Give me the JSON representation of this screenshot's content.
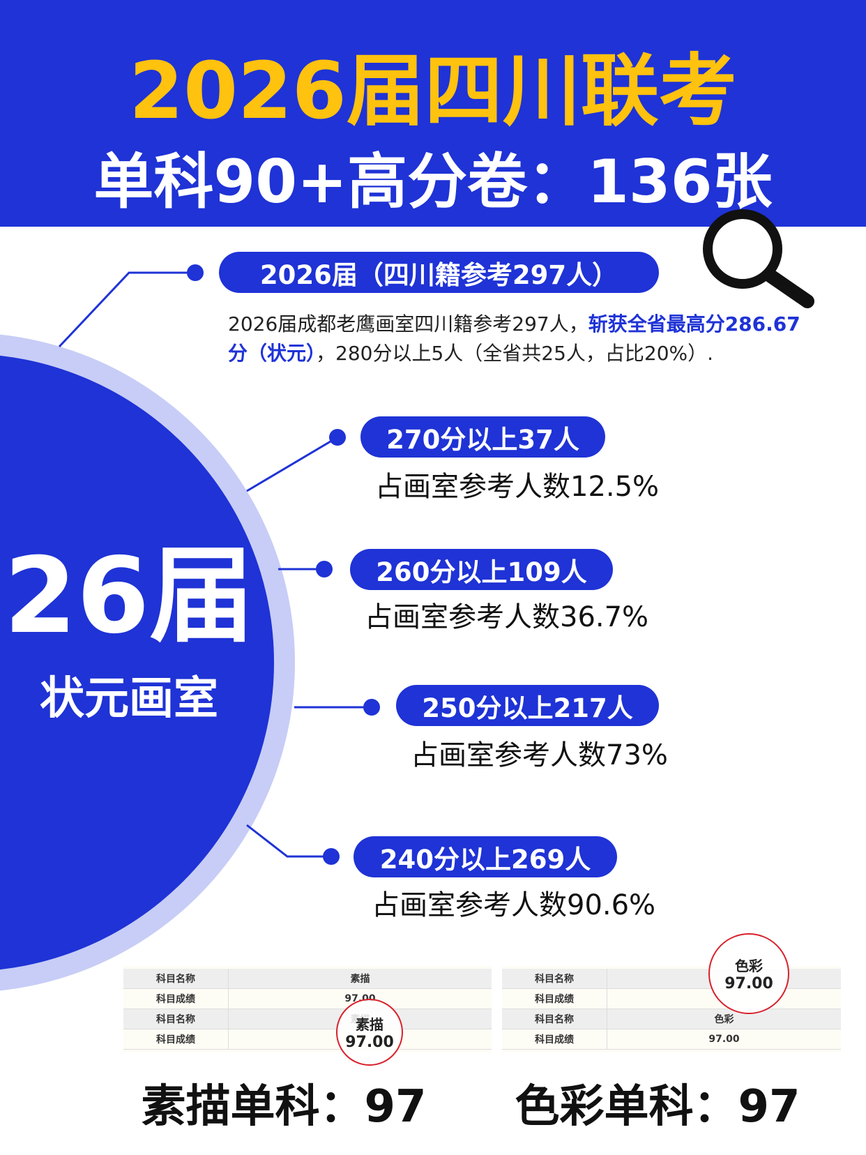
{
  "header": {
    "title": "2026届四川联考",
    "subtitle": "单科90+高分卷：136张"
  },
  "badge": {
    "main": "26届",
    "sub": "状元画室"
  },
  "intro": {
    "heading": "2026届（四川籍参考297人）",
    "text": "2026届成都老鹰画室四川籍参考297人，",
    "highlight": "斩获全省最高分286.67分（状元）",
    "rest": "，280分以上5人（全省共25人，占比20%）."
  },
  "stats": [
    {
      "label": "270分以上37人",
      "ratio": "占画室参考人数12.5%"
    },
    {
      "label": "260分以上109人",
      "ratio": "占画室参考人数36.7%"
    },
    {
      "label": "250分以上217人",
      "ratio": "占画室参考人数73%"
    },
    {
      "label": "240分以上269人",
      "ratio": "占画室参考人数90.6%"
    }
  ],
  "cards": [
    {
      "rows": [
        [
          "科目名称",
          "素描"
        ],
        [
          "科目成绩",
          "97.00"
        ],
        [
          "科目名称",
          "素描"
        ],
        [
          "科目成绩"
        ]
      ],
      "zoom": {
        "label": "素描",
        "score": "97.00"
      },
      "caption": "素描单科：97"
    },
    {
      "rows": [
        [
          "科目名称"
        ],
        [
          "科目成绩"
        ],
        [
          "科目名称",
          "色彩"
        ],
        [
          "科目成绩",
          "97.00"
        ]
      ],
      "zoom": {
        "label": "色彩",
        "score": "97.00"
      },
      "caption": "色彩单科：97"
    }
  ]
}
